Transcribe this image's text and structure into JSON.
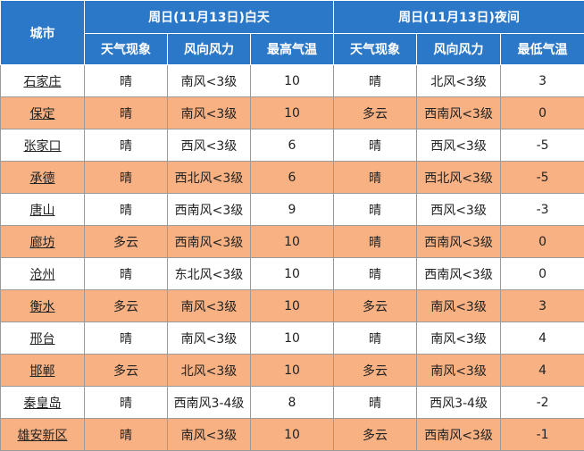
{
  "header": {
    "city": "城市",
    "day_group": "周日(11月13日)白天",
    "night_group": "周日(11月13日)夜间",
    "day_cols": [
      "天气现象",
      "风向风力",
      "最高气温"
    ],
    "night_cols": [
      "天气现象",
      "风向风力",
      "最低气温"
    ]
  },
  "rows": [
    {
      "city": "石家庄",
      "day_weather": "晴",
      "day_wind": "南风<3级",
      "high": "10",
      "night_weather": "晴",
      "night_wind": "北风<3级",
      "low": "3"
    },
    {
      "city": "保定",
      "day_weather": "晴",
      "day_wind": "南风<3级",
      "high": "10",
      "night_weather": "多云",
      "night_wind": "西南风<3级",
      "low": "0"
    },
    {
      "city": "张家口",
      "day_weather": "晴",
      "day_wind": "西风<3级",
      "high": "6",
      "night_weather": "晴",
      "night_wind": "西风<3级",
      "low": "-5"
    },
    {
      "city": "承德",
      "day_weather": "晴",
      "day_wind": "西北风<3级",
      "high": "6",
      "night_weather": "晴",
      "night_wind": "西北风<3级",
      "low": "-5"
    },
    {
      "city": "唐山",
      "day_weather": "晴",
      "day_wind": "西南风<3级",
      "high": "9",
      "night_weather": "晴",
      "night_wind": "西风<3级",
      "low": "-3"
    },
    {
      "city": "廊坊",
      "day_weather": "多云",
      "day_wind": "西南风<3级",
      "high": "10",
      "night_weather": "晴",
      "night_wind": "西南风<3级",
      "low": "0"
    },
    {
      "city": "沧州",
      "day_weather": "晴",
      "day_wind": "东北风<3级",
      "high": "10",
      "night_weather": "晴",
      "night_wind": "西南风<3级",
      "low": "0"
    },
    {
      "city": "衡水",
      "day_weather": "多云",
      "day_wind": "南风<3级",
      "high": "10",
      "night_weather": "多云",
      "night_wind": "南风<3级",
      "low": "3"
    },
    {
      "city": "邢台",
      "day_weather": "晴",
      "day_wind": "南风<3级",
      "high": "10",
      "night_weather": "晴",
      "night_wind": "南风<3级",
      "low": "4"
    },
    {
      "city": "邯郸",
      "day_weather": "多云",
      "day_wind": "北风<3级",
      "high": "10",
      "night_weather": "多云",
      "night_wind": "南风<3级",
      "low": "4"
    },
    {
      "city": "秦皇岛",
      "day_weather": "晴",
      "day_wind": "西南风3-4级",
      "high": "8",
      "night_weather": "晴",
      "night_wind": "西风3-4级",
      "low": "-2"
    },
    {
      "city": "雄安新区",
      "day_weather": "晴",
      "day_wind": "南风<3级",
      "high": "10",
      "night_weather": "多云",
      "night_wind": "西南风<3级",
      "low": "-1"
    }
  ]
}
